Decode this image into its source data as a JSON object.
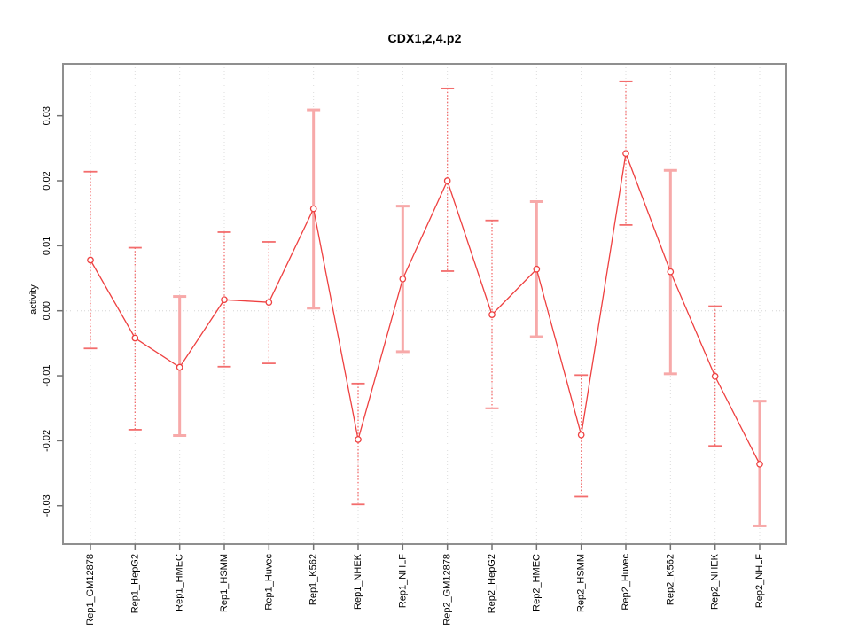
{
  "figure": {
    "background": "#ffffff"
  },
  "chart_data": {
    "type": "scatter",
    "title": "CDX1,2,4.p2",
    "xlabel": "",
    "ylabel": "activity",
    "legend": "none",
    "grid": "vertical dotted gridline at each category; dotted horizontal line at y=0",
    "ylim": [
      -0.0359,
      0.038
    ],
    "yticks": [
      0.03,
      0.02,
      0.01,
      0.0,
      -0.01,
      -0.02,
      -0.03
    ],
    "ytick_labels": [
      "0.03",
      "0.02",
      "0.01",
      "0.00",
      "-0.01",
      "-0.02",
      "-0.03"
    ],
    "categories": [
      "Rep1_GM12878",
      "Rep1_HepG2",
      "Rep1_HMEC",
      "Rep1_HSMM",
      "Rep1_Huvec",
      "Rep1_K562",
      "Rep1_NHEK",
      "Rep1_NHLF",
      "Rep2_GM12878",
      "Rep2_HepG2",
      "Rep2_HMEC",
      "Rep2_HSMM",
      "Rep2_Huvec",
      "Rep2_K562",
      "Rep2_NHEK",
      "Rep2_NHLF"
    ],
    "series": [
      {
        "name": "activity",
        "marker": "open-circle",
        "connected": true,
        "values": [
          0.0078,
          -0.0042,
          -0.0087,
          0.0017,
          0.0013,
          0.0157,
          -0.0198,
          0.0049,
          0.02,
          -0.0006,
          0.0064,
          -0.0191,
          0.0242,
          0.006,
          -0.0101,
          -0.0236
        ],
        "error_low": [
          -0.0058,
          -0.0183,
          -0.0192,
          -0.0086,
          -0.0081,
          0.0004,
          -0.0298,
          -0.0063,
          0.0061,
          -0.015,
          -0.004,
          -0.0286,
          0.0132,
          -0.0097,
          -0.0208,
          -0.0331
        ],
        "error_high": [
          0.0214,
          0.0097,
          0.0022,
          0.0121,
          0.0106,
          0.0309,
          -0.0112,
          0.0161,
          0.0342,
          0.0139,
          0.0168,
          -0.0099,
          0.0353,
          0.0216,
          0.0007,
          -0.0139
        ],
        "errorbar_styles": [
          "thin",
          "thin",
          "thick",
          "thin",
          "thin",
          "thick",
          "thin",
          "thick",
          "thin",
          "thin",
          "thick",
          "thin",
          "thin",
          "thick",
          "thin",
          "thick"
        ]
      }
    ],
    "colors": {
      "point_line": "#ee4040",
      "errorbar_thin": "#f36d6d",
      "errorbar_thick": "#f7a9a9",
      "gridline": "#dcdcdc",
      "zero_line": "#d6d6d6",
      "axis_box": "#8f8f8f",
      "tick": "#737373",
      "text": "#000000"
    }
  }
}
